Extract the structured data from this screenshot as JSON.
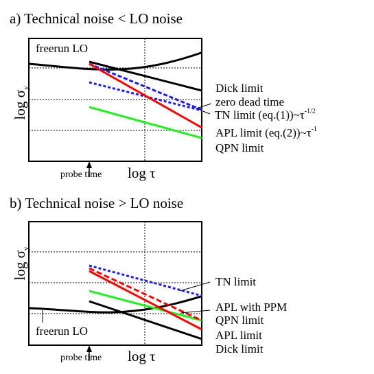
{
  "panels": [
    {
      "title": "a) Technical noise < LO noise",
      "ylabel": "log σ",
      "ylabel_sub": "y",
      "xlabel": "log τ",
      "probe_label": "probe time",
      "freerun_label": "freerun LO",
      "labels": {
        "dick": "Dick limit",
        "zero": "zero dead time",
        "tn": "TN limit (eq.(1))~τ",
        "tn_sup": "-1/2",
        "apl": "APL limit (eq.(2))~τ",
        "apl_sup": "-1",
        "qpn": "QPN limit"
      }
    },
    {
      "title": "b) Technical noise > LO noise",
      "ylabel": "log σ",
      "ylabel_sub": "y",
      "xlabel": "log τ",
      "probe_label": "probe time",
      "freerun_label": "freerun LO",
      "labels": {
        "tn": "TN limit",
        "apl_ppm": "APL with PPM",
        "qpn": "QPN limit",
        "apl": "APL limit",
        "dick": "Dick limit"
      }
    }
  ],
  "colors": {
    "black": "#000000",
    "red": "#ff0000",
    "blue": "#1a1aee",
    "green": "#22ee22"
  }
}
